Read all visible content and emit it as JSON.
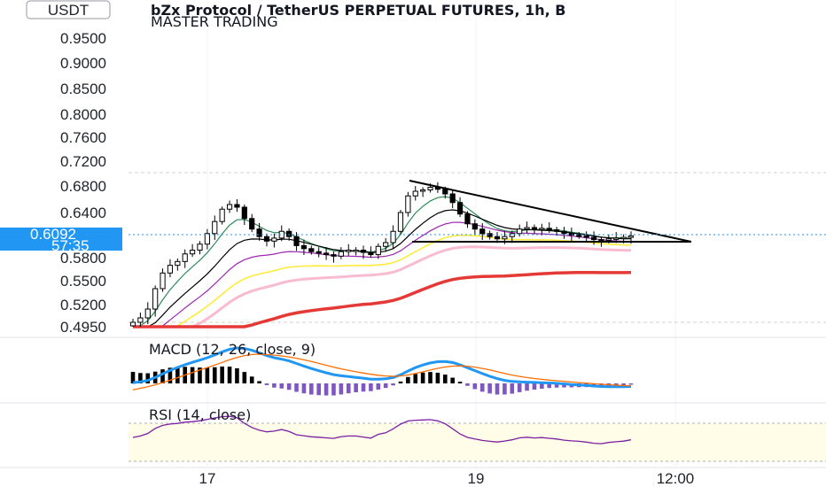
{
  "header": {
    "title": "bZx Protocol / TetherUS PERPETUAL FUTURES, 1h, B",
    "subtitle": "MASTER TRADING",
    "currency": "USDT"
  },
  "price_axis": {
    "ticks": [
      "0.9500",
      "0.9000",
      "0.8500",
      "0.8000",
      "0.7600",
      "0.7200",
      "0.6800",
      "0.6400",
      "0.5800",
      "0.5500",
      "0.5200",
      "0.4950"
    ],
    "current_price": "0.6092",
    "countdown": "57:35",
    "current_color": "#2196f3"
  },
  "time_axis": {
    "ticks": [
      "17",
      "19",
      "12:00"
    ]
  },
  "indicators": {
    "macd_label": "MACD (12, 26, close, 9)",
    "rsi_label": "RSI (14, close)"
  },
  "chart_data": {
    "type": "candlestick",
    "symbol": "BZRXUSDT",
    "interval": "1h",
    "price": {
      "close_series": [
        0.5,
        0.505,
        0.515,
        0.54,
        0.56,
        0.57,
        0.575,
        0.585,
        0.59,
        0.598,
        0.612,
        0.628,
        0.645,
        0.652,
        0.648,
        0.632,
        0.618,
        0.608,
        0.602,
        0.606,
        0.615,
        0.608,
        0.596,
        0.592,
        0.588,
        0.586,
        0.584,
        0.582,
        0.588,
        0.59,
        0.59,
        0.587,
        0.584,
        0.595,
        0.6,
        0.615,
        0.64,
        0.665,
        0.672,
        0.674,
        0.678,
        0.675,
        0.668,
        0.655,
        0.638,
        0.625,
        0.618,
        0.612,
        0.608,
        0.605,
        0.608,
        0.612,
        0.618,
        0.62,
        0.618,
        0.619,
        0.617,
        0.615,
        0.612,
        0.61,
        0.609,
        0.607,
        0.604,
        0.603,
        0.605,
        0.606,
        0.607,
        0.609
      ],
      "pattern": "descending triangle",
      "triangle": {
        "upper_line": [
          0.682,
          0.597
        ],
        "support": 0.601
      },
      "ylim": [
        0.495,
        0.95
      ],
      "y_ticks": [
        0.95,
        0.9,
        0.85,
        0.8,
        0.76,
        0.72,
        0.68,
        0.64,
        0.58,
        0.55,
        0.52,
        0.495
      ],
      "current": 0.6092
    },
    "macd": {
      "fast": 12,
      "slow": 26,
      "source": "close",
      "signal": 9
    },
    "rsi": {
      "length": 14,
      "source": "close"
    }
  },
  "colors": {
    "up_candle": "#ffffff",
    "down_candle": "#000000",
    "ma_fast": "#2e8b57",
    "ma_black": "#000000",
    "ma_purple": "#9c27b0",
    "ma_yellow": "#ffeb3b",
    "ma_pink": "#f8bbd0",
    "ma_red": "#e53935",
    "macd_line": "#2196f3",
    "signal_line": "#ff6d00",
    "hist_pos": "#000000",
    "hist_neg": "#7e57c2",
    "rsi_line": "#7b1fa2",
    "rsi_band": "#fffde7"
  }
}
